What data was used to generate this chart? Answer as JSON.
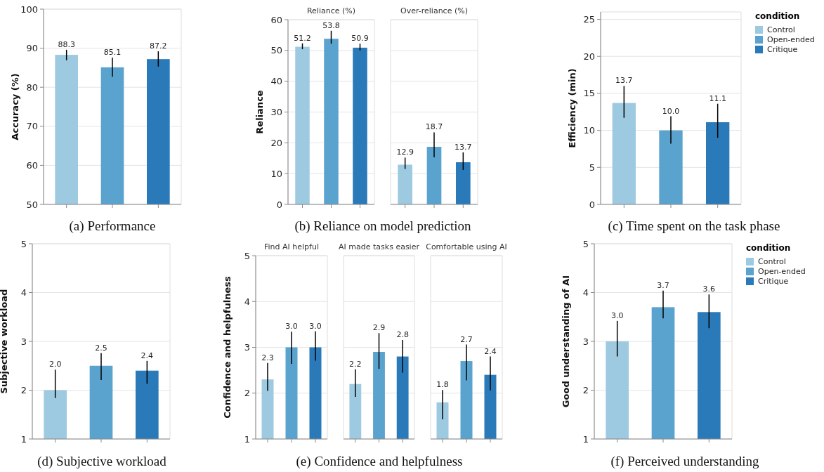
{
  "chart_data": [
    {
      "type": "bar",
      "ylabel": "Accuracy (%)",
      "annotations": [
        "(a) Performance"
      ],
      "categories": [
        null
      ],
      "ylim": [
        50,
        100
      ],
      "yticks": [
        50,
        60,
        70,
        80,
        90,
        100
      ],
      "grid": "y",
      "tick_labels": "y",
      "series": [
        {
          "color": "#9ecae1",
          "values": [
            88.3
          ],
          "errors": [
            [
              86.9,
              89.6
            ]
          ],
          "value_labels": [
            "88.3"
          ]
        },
        {
          "color": "#5ba3cf",
          "values": [
            85.1
          ],
          "errors": [
            [
              82.7,
              87.6
            ]
          ],
          "value_labels": [
            "85.1"
          ]
        },
        {
          "color": "#2a7ab9",
          "values": [
            87.2
          ],
          "errors": [
            [
              85.3,
              89.2
            ]
          ],
          "value_labels": [
            "87.2"
          ]
        }
      ]
    },
    {
      "type": "bar",
      "ylabel": "Reliance",
      "annotations": [
        "(b) Reliance on model prediction"
      ],
      "categories": [
        "Reliance (%)",
        "Over-reliance (%)"
      ],
      "ylim": [
        0,
        60
      ],
      "yticks": [
        0,
        10,
        20,
        30,
        40,
        50,
        60
      ],
      "grid": "y",
      "series": [
        {
          "color": "#9ecae1",
          "values": [
            51.2,
            12.9
          ],
          "errors": [
            [
              50.4,
              52.3
            ],
            [
              11.5,
              15.2
            ]
          ],
          "value_labels": [
            "51.2",
            "12.9"
          ]
        },
        {
          "color": "#5ba3cf",
          "values": [
            53.8,
            18.7
          ],
          "errors": [
            [
              52.2,
              56.4
            ],
            [
              15.3,
              23.4
            ]
          ],
          "value_labels": [
            "53.8",
            "18.7"
          ]
        },
        {
          "color": "#2a7ab9",
          "values": [
            50.9,
            13.7
          ],
          "errors": [
            [
              50.0,
              52.2
            ],
            [
              11.2,
              16.9
            ]
          ],
          "value_labels": [
            "50.9",
            "13.7"
          ]
        }
      ]
    },
    {
      "type": "bar",
      "ylabel": "Efficiency (min)",
      "annotations": [
        "(c) Time spent on the task phase"
      ],
      "categories": [
        null
      ],
      "ylim": [
        0,
        26
      ],
      "yticks": [
        0,
        5,
        10,
        15,
        20,
        25
      ],
      "grid": "y",
      "tick_labels": "y",
      "legend": "right",
      "legend_title": "condition",
      "series": [
        {
          "name": "Control",
          "color": "#9ecae1",
          "values": [
            13.7
          ],
          "errors": [
            [
              11.7,
              16.0
            ]
          ],
          "value_labels": [
            "13.7"
          ]
        },
        {
          "name": "Open-ended",
          "color": "#5ba3cf",
          "values": [
            10.0
          ],
          "errors": [
            [
              8.2,
              11.9
            ]
          ],
          "value_labels": [
            "10.0"
          ]
        },
        {
          "name": "Critique",
          "color": "#2a7ab9",
          "values": [
            11.1
          ],
          "errors": [
            [
              9.0,
              13.6
            ]
          ],
          "value_labels": [
            "11.1"
          ]
        }
      ]
    },
    {
      "type": "bar",
      "ylabel": "Subjective workload",
      "annotations": [
        "(d) Subjective workload"
      ],
      "categories": [
        null
      ],
      "ylim": [
        1,
        5
      ],
      "yticks": [
        1,
        2,
        3,
        4,
        5
      ],
      "grid": "y",
      "tick_labels": "y",
      "series": [
        {
          "color": "#9ecae1",
          "values": [
            2.0
          ],
          "errors": [
            [
              1.84,
              2.42
            ]
          ],
          "value_labels": [
            "2.0"
          ]
        },
        {
          "color": "#5ba3cf",
          "values": [
            2.5
          ],
          "errors": [
            [
              2.21,
              2.76
            ]
          ],
          "value_labels": [
            "2.5"
          ]
        },
        {
          "color": "#2a7ab9",
          "values": [
            2.4
          ],
          "errors": [
            [
              2.13,
              2.6
            ]
          ],
          "value_labels": [
            "2.4"
          ]
        }
      ]
    },
    {
      "type": "bar",
      "ylabel": "Confidence and helpfulness",
      "annotations": [
        "(e) Confidence and helpfulness"
      ],
      "categories": [
        "Find AI helpful",
        "AI made tasks easier",
        "Comfortable using AI"
      ],
      "ylim": [
        1,
        5
      ],
      "yticks": [
        1,
        2,
        3,
        4,
        5
      ],
      "grid": "y",
      "series": [
        {
          "color": "#9ecae1",
          "values": [
            2.3,
            2.2,
            1.8
          ],
          "errors": [
            [
              2.05,
              2.66
            ],
            [
              1.92,
              2.52
            ],
            [
              1.43,
              2.07
            ]
          ],
          "value_labels": [
            "2.3",
            "2.2",
            "1.8"
          ]
        },
        {
          "color": "#5ba3cf",
          "values": [
            3.0,
            2.9,
            2.7
          ],
          "errors": [
            [
              2.64,
              3.34
            ],
            [
              2.53,
              3.31
            ],
            [
              2.28,
              3.06
            ]
          ],
          "value_labels": [
            "3.0",
            "2.9",
            "2.7"
          ]
        },
        {
          "color": "#2a7ab9",
          "values": [
            3.0,
            2.8,
            2.4
          ],
          "errors": [
            [
              2.71,
              3.35
            ],
            [
              2.45,
              3.16
            ],
            [
              2.06,
              2.8
            ]
          ],
          "value_labels": [
            "3.0",
            "2.8",
            "2.4"
          ]
        }
      ]
    },
    {
      "type": "bar",
      "ylabel": "Good understanding of AI",
      "annotations": [
        "(f) Perceived understanding"
      ],
      "categories": [
        null
      ],
      "ylim": [
        1,
        5
      ],
      "yticks": [
        1,
        2,
        3,
        4,
        5
      ],
      "grid": "y",
      "tick_labels": "y",
      "legend": "right",
      "legend_title": "condition",
      "series": [
        {
          "name": "Control",
          "color": "#9ecae1",
          "values": [
            3.0
          ],
          "errors": [
            [
              2.69,
              3.42
            ]
          ],
          "value_labels": [
            "3.0"
          ]
        },
        {
          "name": "Open-ended",
          "color": "#5ba3cf",
          "values": [
            3.7
          ],
          "errors": [
            [
              3.47,
              4.04
            ]
          ],
          "value_labels": [
            "3.7"
          ]
        },
        {
          "name": "Critique",
          "color": "#2a7ab9",
          "values": [
            3.6
          ],
          "errors": [
            [
              3.27,
              3.96
            ]
          ],
          "value_labels": [
            "3.6"
          ]
        }
      ]
    }
  ]
}
